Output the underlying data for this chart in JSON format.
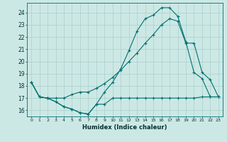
{
  "xlabel": "Humidex (Indice chaleur)",
  "background_color": "#cce8e5",
  "grid_color": "#aacfcc",
  "line_color": "#007070",
  "xlim": [
    -0.5,
    23.5
  ],
  "ylim": [
    15.5,
    24.8
  ],
  "xticks": [
    0,
    1,
    2,
    3,
    4,
    5,
    6,
    7,
    8,
    9,
    10,
    11,
    12,
    13,
    14,
    15,
    16,
    17,
    18,
    19,
    20,
    21,
    22,
    23
  ],
  "yticks": [
    16,
    17,
    18,
    19,
    20,
    21,
    22,
    23,
    24
  ],
  "line1_x": [
    0,
    1,
    2,
    3,
    4,
    5,
    6,
    7,
    8,
    9,
    10,
    11,
    12,
    13,
    14,
    15,
    16,
    17,
    18,
    19,
    20,
    21,
    22,
    23
  ],
  "line1_y": [
    18.3,
    17.1,
    17.0,
    16.7,
    16.3,
    16.1,
    15.8,
    15.7,
    16.5,
    17.5,
    18.3,
    19.4,
    20.9,
    22.5,
    23.5,
    23.8,
    24.4,
    24.4,
    23.7,
    21.6,
    19.1,
    18.6,
    17.1,
    17.1
  ],
  "line2_x": [
    0,
    1,
    2,
    3,
    4,
    5,
    6,
    7,
    8,
    9,
    10,
    11,
    12,
    13,
    14,
    15,
    16,
    17,
    18,
    19,
    20,
    21,
    22,
    23
  ],
  "line2_y": [
    18.3,
    17.1,
    17.0,
    16.7,
    16.3,
    16.1,
    15.8,
    15.7,
    16.5,
    16.5,
    17.0,
    17.0,
    17.0,
    17.0,
    17.0,
    17.0,
    17.0,
    17.0,
    17.0,
    17.0,
    17.0,
    17.1,
    17.1,
    17.1
  ],
  "line3_x": [
    0,
    1,
    2,
    3,
    4,
    5,
    6,
    7,
    8,
    9,
    10,
    11,
    12,
    13,
    14,
    15,
    16,
    17,
    18,
    19,
    20,
    21,
    22,
    23
  ],
  "line3_y": [
    18.3,
    17.1,
    17.0,
    17.0,
    17.0,
    17.3,
    17.5,
    17.5,
    17.8,
    18.2,
    18.7,
    19.3,
    20.0,
    20.7,
    21.5,
    22.2,
    23.0,
    23.5,
    23.3,
    21.5,
    21.5,
    19.1,
    18.5,
    17.1
  ]
}
